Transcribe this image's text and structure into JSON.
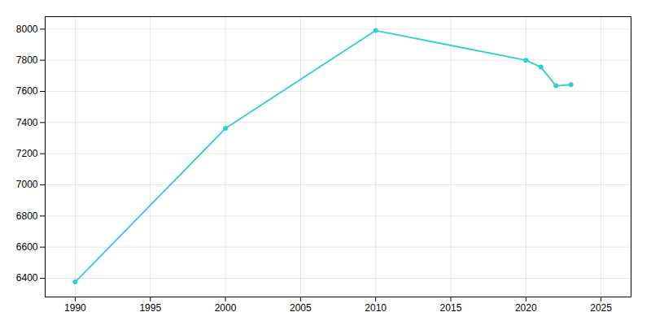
{
  "chart_data": {
    "type": "line",
    "x": [
      1990,
      2000,
      2010,
      2020,
      2021,
      2022,
      2023
    ],
    "values": [
      6376,
      7362,
      7991,
      7800,
      7756,
      7636,
      7643
    ],
    "color": "#2dcfcf",
    "marker": "circle",
    "xlim": [
      1988,
      2027
    ],
    "ylim": [
      6280,
      8080
    ],
    "xticks": [
      1990,
      1995,
      2000,
      2005,
      2010,
      2015,
      2020,
      2025
    ],
    "yticks": [
      6400,
      6600,
      6800,
      7000,
      7200,
      7400,
      7600,
      7800,
      8000
    ],
    "grid": true
  }
}
